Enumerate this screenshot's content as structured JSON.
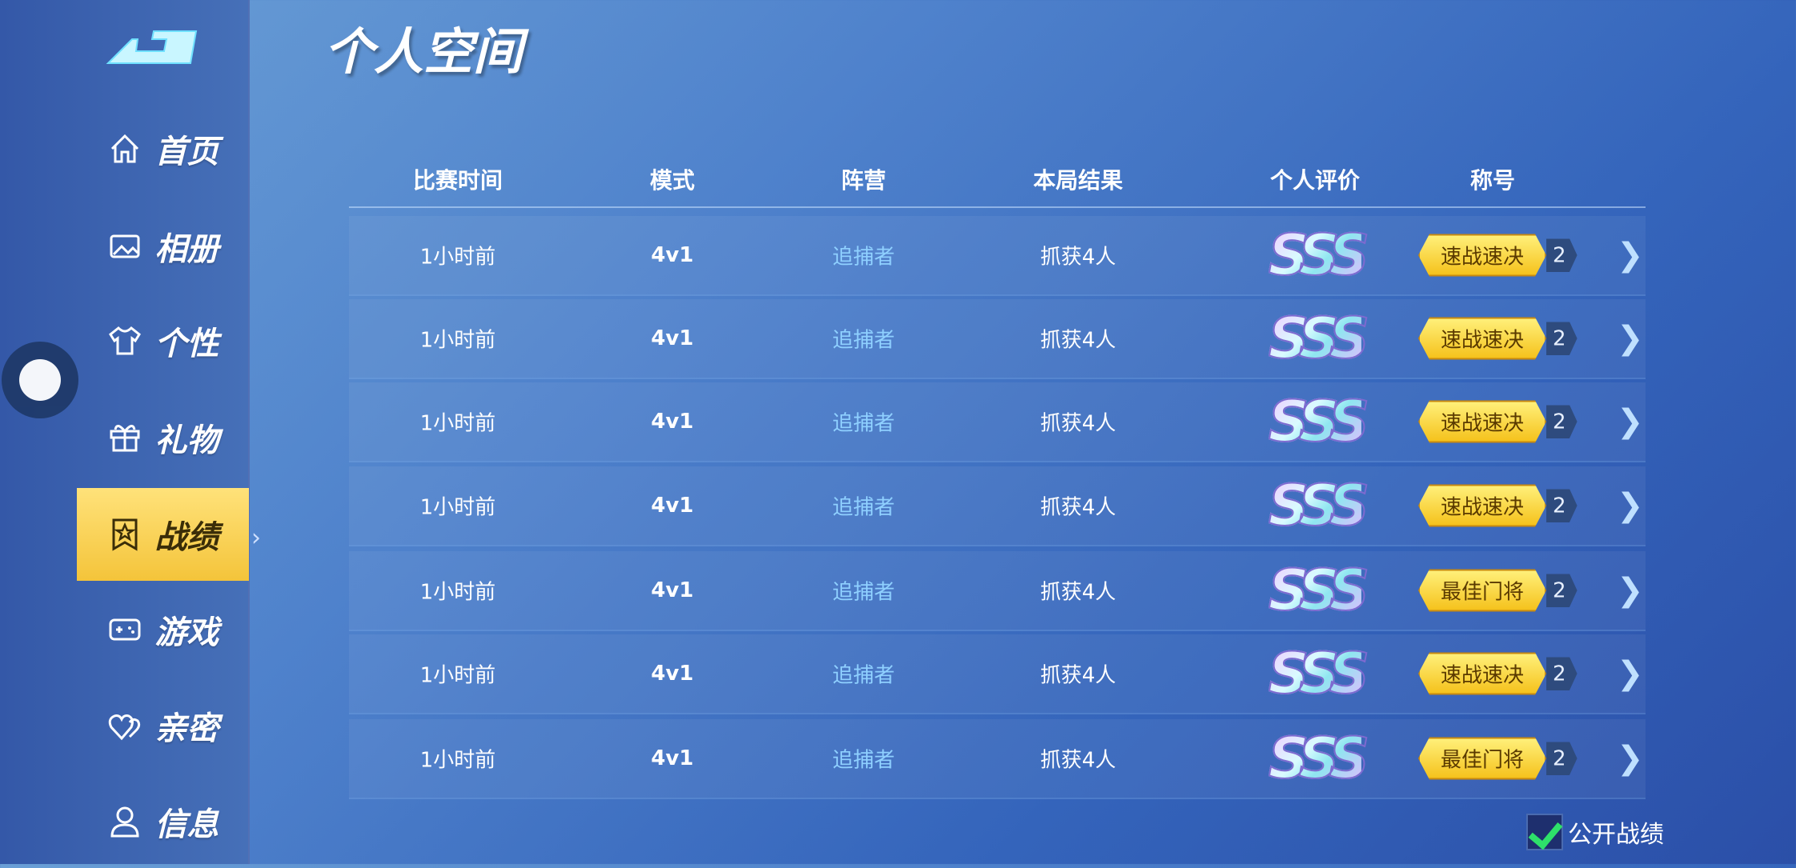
{
  "sidebar": {
    "items": [
      {
        "label": "首页",
        "icon": "home-icon"
      },
      {
        "label": "相册",
        "icon": "image-icon"
      },
      {
        "label": "个性",
        "icon": "shirt-icon"
      },
      {
        "label": "礼物",
        "icon": "gift-icon"
      },
      {
        "label": "战绩",
        "icon": "badge-icon",
        "active": true
      },
      {
        "label": "游戏",
        "icon": "gamepad-icon"
      },
      {
        "label": "亲密",
        "icon": "hearts-icon"
      },
      {
        "label": "信息",
        "icon": "user-icon"
      }
    ]
  },
  "page": {
    "title": "个人空间"
  },
  "table": {
    "headers": [
      "比赛时间",
      "模式",
      "阵营",
      "本局结果",
      "个人评价",
      "称号"
    ],
    "rows": [
      {
        "time": "1小时前",
        "mode": "4v1",
        "camp": "追捕者",
        "result": "抓获4人",
        "rating": "SSS",
        "title": "速战速决",
        "count": "2"
      },
      {
        "time": "1小时前",
        "mode": "4v1",
        "camp": "追捕者",
        "result": "抓获4人",
        "rating": "SSS",
        "title": "速战速决",
        "count": "2"
      },
      {
        "time": "1小时前",
        "mode": "4v1",
        "camp": "追捕者",
        "result": "抓获4人",
        "rating": "SSS",
        "title": "速战速决",
        "count": "2"
      },
      {
        "time": "1小时前",
        "mode": "4v1",
        "camp": "追捕者",
        "result": "抓获4人",
        "rating": "SSS",
        "title": "速战速决",
        "count": "2"
      },
      {
        "time": "1小时前",
        "mode": "4v1",
        "camp": "追捕者",
        "result": "抓获4人",
        "rating": "SSS",
        "title": "最佳门将",
        "count": "2"
      },
      {
        "time": "1小时前",
        "mode": "4v1",
        "camp": "追捕者",
        "result": "抓获4人",
        "rating": "SSS",
        "title": "速战速决",
        "count": "2"
      },
      {
        "time": "1小时前",
        "mode": "4v1",
        "camp": "追捕者",
        "result": "抓获4人",
        "rating": "SSS",
        "title": "最佳门将",
        "count": "2"
      }
    ]
  },
  "footer": {
    "public_label": "公开战绩",
    "public_checked": true
  },
  "colors": {
    "accent": "#f4c43a",
    "camp": "#8fd0ff",
    "check": "#2ee06a"
  }
}
